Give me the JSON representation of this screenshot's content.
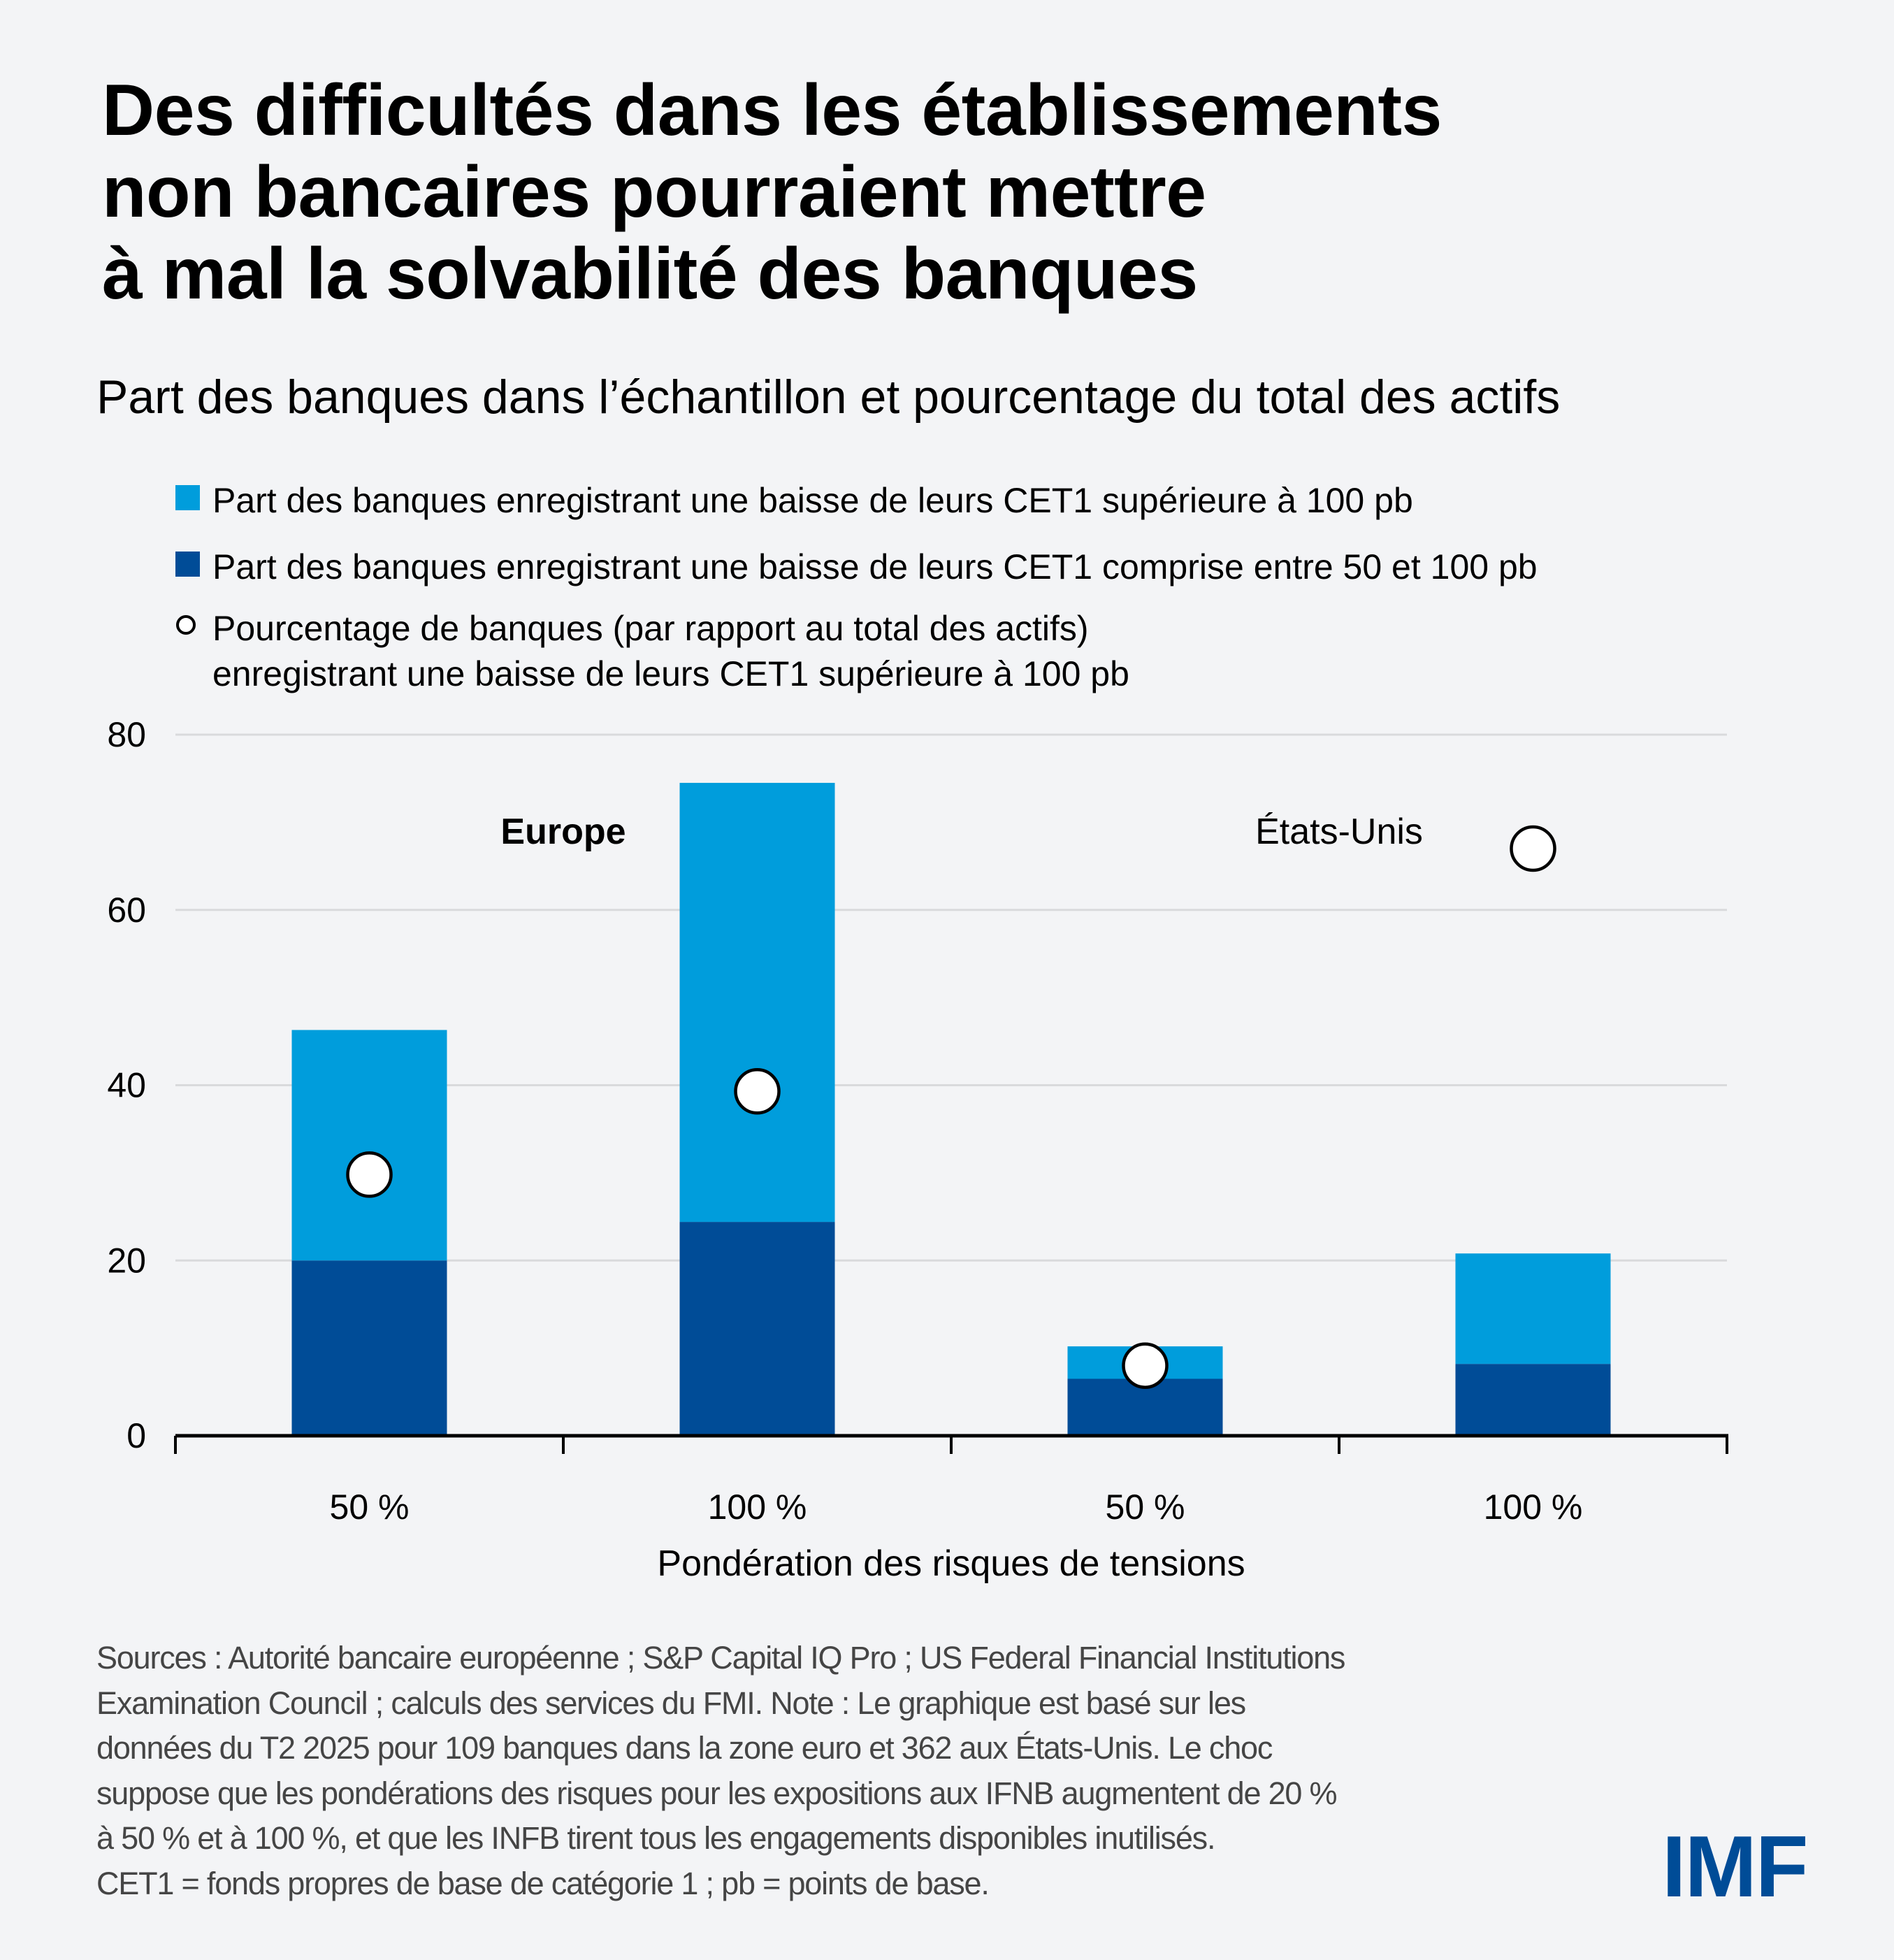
{
  "title": {
    "lines": [
      "Des difficultés dans les établissements",
      "non bancaires pourraient mettre",
      "à mal la solvabilité des banques"
    ]
  },
  "subtitle": "Part des banques dans l’échantillon et pourcentage du total des actifs",
  "legend": [
    {
      "type": "square",
      "color": "#009ddc",
      "text": "Part des banques enregistrant une baisse de leurs CET1 supérieure à 100 pb"
    },
    {
      "type": "square",
      "color": "#004c97",
      "text": "Part des banques enregistrant une baisse de leurs CET1 comprise entre 50 et 100 pb"
    },
    {
      "type": "circle",
      "color": "#ffffff",
      "text_lines": [
        "Pourcentage de banques (par rapport au total des actifs)",
        "enregistrant une baisse de leurs CET1 supérieure à 100 pb"
      ]
    }
  ],
  "chart_data": {
    "type": "bar",
    "stacked": true,
    "title": "Des difficultés dans les établissements non bancaires pourraient mettre à mal la solvabilité des banques",
    "subtitle": "Part des banques dans l’échantillon et pourcentage du total des actifs",
    "xlabel": "Pondération des risques de tensions",
    "ylabel": "",
    "ylim": [
      0,
      80
    ],
    "yticks": [
      0,
      20,
      40,
      60,
      80
    ],
    "grid": true,
    "legend_position": "top-left",
    "groups": [
      {
        "label": "Europe",
        "categories": [
          0,
          1
        ]
      },
      {
        "label": "États-Unis",
        "categories": [
          2,
          3
        ]
      }
    ],
    "categories": [
      "50 %",
      "100 %",
      "50 %",
      "100 %"
    ],
    "series": [
      {
        "name": "Part des banques enregistrant une baisse de leurs CET1 comprise entre 50 et 100 pb",
        "kind": "bar",
        "color": "#004c97",
        "values": [
          20.0,
          24.4,
          6.5,
          8.2
        ]
      },
      {
        "name": "Part des banques enregistrant une baisse de leurs CET1 supérieure à 100 pb",
        "kind": "bar",
        "color": "#009ddc",
        "values": [
          26.3,
          50.1,
          3.7,
          12.6
        ]
      },
      {
        "name": "Pourcentage de banques (par rapport au total des actifs) enregistrant une baisse de leurs CET1 supérieure à 100 pb",
        "kind": "marker",
        "color": "#ffffff",
        "values": [
          29.8,
          39.3,
          8.0,
          67.0
        ]
      }
    ],
    "stack_totals": [
      46.3,
      74.5,
      10.2,
      20.8
    ]
  },
  "footer": {
    "lines": [
      "Sources : Autorité bancaire européenne ; S&P Capital IQ Pro ; US Federal Financial Institutions",
      "Examination Council ; calculs des services du FMI. Note : Le graphique est basé sur les",
      "données du T2 2025 pour 109 banques dans la zone euro et 362 aux États-Unis. Le choc",
      "suppose que les pondérations des risques pour les expositions aux IFNB augmentent de 20 %",
      "à 50 % et à 100 %, et que les INFB tirent tous les engagements disponibles inutilisés.",
      "CET1 = fonds propres de base de catégorie 1 ; pb = points de base."
    ]
  },
  "logo": {
    "text": "IMF",
    "color": "#004c97"
  },
  "colors": {
    "background": "#f3f4f6",
    "light_blue": "#009ddc",
    "dark_blue": "#004c97",
    "gridline": "#d9dadc",
    "axis": "#000000"
  }
}
